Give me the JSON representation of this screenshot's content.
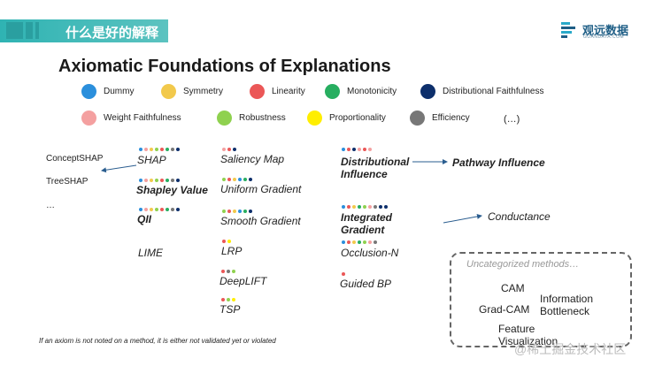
{
  "header": {
    "title": "什么是好的解释",
    "logo_name": "观远数据",
    "logo_subtitle": "GUANDATA.COM",
    "accent_color": "#2fb3b3"
  },
  "slide_title": "Axiomatic Foundations of Explanations",
  "legend": [
    {
      "label": "Dummy",
      "color": "#2b8fdc"
    },
    {
      "label": "Symmetry",
      "color": "#f2c94c"
    },
    {
      "label": "Linearity",
      "color": "#eb5757"
    },
    {
      "label": "Monotonicity",
      "color": "#27ae60"
    },
    {
      "label": "Distributional Faithfulness",
      "color": "#0d2f6b"
    },
    {
      "label": "Weight Faithfulness",
      "color": "#f4a0a0"
    },
    {
      "label": "Robustness",
      "color": "#8fd14f"
    },
    {
      "label": "Proportionality",
      "color": "#ffee00"
    },
    {
      "label": "Efficiency",
      "color": "#777777"
    },
    {
      "label": "(…)",
      "color": ""
    }
  ],
  "derived_methods": [
    "ConceptSHAP",
    "TreeSHAP",
    "…"
  ],
  "methods": {
    "shap": {
      "label": "SHAP",
      "axioms": [
        "Dummy",
        "Weight Faithfulness",
        "Symmetry",
        "Robustness",
        "Linearity",
        "Monotonicity",
        "Efficiency",
        "Distributional Faithfulness"
      ]
    },
    "shapley_value": {
      "label": "Shapley Value",
      "axioms": [
        "Dummy",
        "Weight Faithfulness",
        "Symmetry",
        "Robustness",
        "Linearity",
        "Monotonicity",
        "Efficiency",
        "Distributional Faithfulness"
      ]
    },
    "qii": {
      "label": "QII",
      "axioms": [
        "Dummy",
        "Weight Faithfulness",
        "Symmetry",
        "Robustness",
        "Linearity",
        "Monotonicity",
        "Efficiency",
        "Distributional Faithfulness"
      ]
    },
    "lime": {
      "label": "LIME",
      "axioms": []
    },
    "saliency_map": {
      "label": "Saliency Map",
      "axioms": [
        "Weight Faithfulness",
        "Linearity",
        "Distributional Faithfulness"
      ]
    },
    "uniform_gradient": {
      "label": "Uniform Gradient",
      "axioms": [
        "Robustness",
        "Linearity",
        "Symmetry",
        "Dummy",
        "Monotonicity",
        "Distributional Faithfulness"
      ]
    },
    "smooth_gradient": {
      "label": "Smooth Gradient",
      "axioms": [
        "Robustness",
        "Linearity",
        "Symmetry",
        "Dummy",
        "Monotonicity",
        "Distributional Faithfulness"
      ]
    },
    "lrp": {
      "label": "LRP",
      "axioms": [
        "Linearity",
        "Proportionality"
      ]
    },
    "deeplift": {
      "label": "DeepLIFT",
      "axioms": [
        "Linearity",
        "Efficiency",
        "Robustness"
      ]
    },
    "tsp": {
      "label": "TSP",
      "axioms": [
        "Linearity",
        "Robustness",
        "Proportionality"
      ]
    },
    "distributional_influence": {
      "label": "Distributional Influence",
      "axioms": [
        "Dummy",
        "Linearity",
        "Distributional Faithfulness",
        "Weight Faithfulness",
        "Linearity",
        "Weight Faithfulness"
      ]
    },
    "pathway_influence": {
      "label": "Pathway Influence",
      "axioms": []
    },
    "integrated_gradient": {
      "label": "Integrated Gradient",
      "axioms": [
        "Dummy",
        "Linearity",
        "Symmetry",
        "Monotonicity",
        "Robustness",
        "Weight Faithfulness",
        "Efficiency",
        "Distributional Faithfulness",
        "Distributional Faithfulness"
      ]
    },
    "conductance": {
      "label": "Conductance",
      "axioms": []
    },
    "occlusion_n": {
      "label": "Occlusion-N",
      "axioms": [
        "Dummy",
        "Linearity",
        "Symmetry",
        "Monotonicity",
        "Robustness",
        "Weight Faithfulness",
        "Efficiency"
      ]
    },
    "guided_bp": {
      "label": "Guided BP",
      "axioms": [
        "Linearity"
      ]
    }
  },
  "uncategorized": {
    "title": "Uncategorized methods…",
    "items": [
      "CAM",
      "Information Bottleneck",
      "Grad-CAM",
      "Feature Visualization"
    ]
  },
  "footnote": "If an axiom is not noted on a method, it is either not validated yet or violated",
  "watermark": "@稀土掘金技术社区"
}
